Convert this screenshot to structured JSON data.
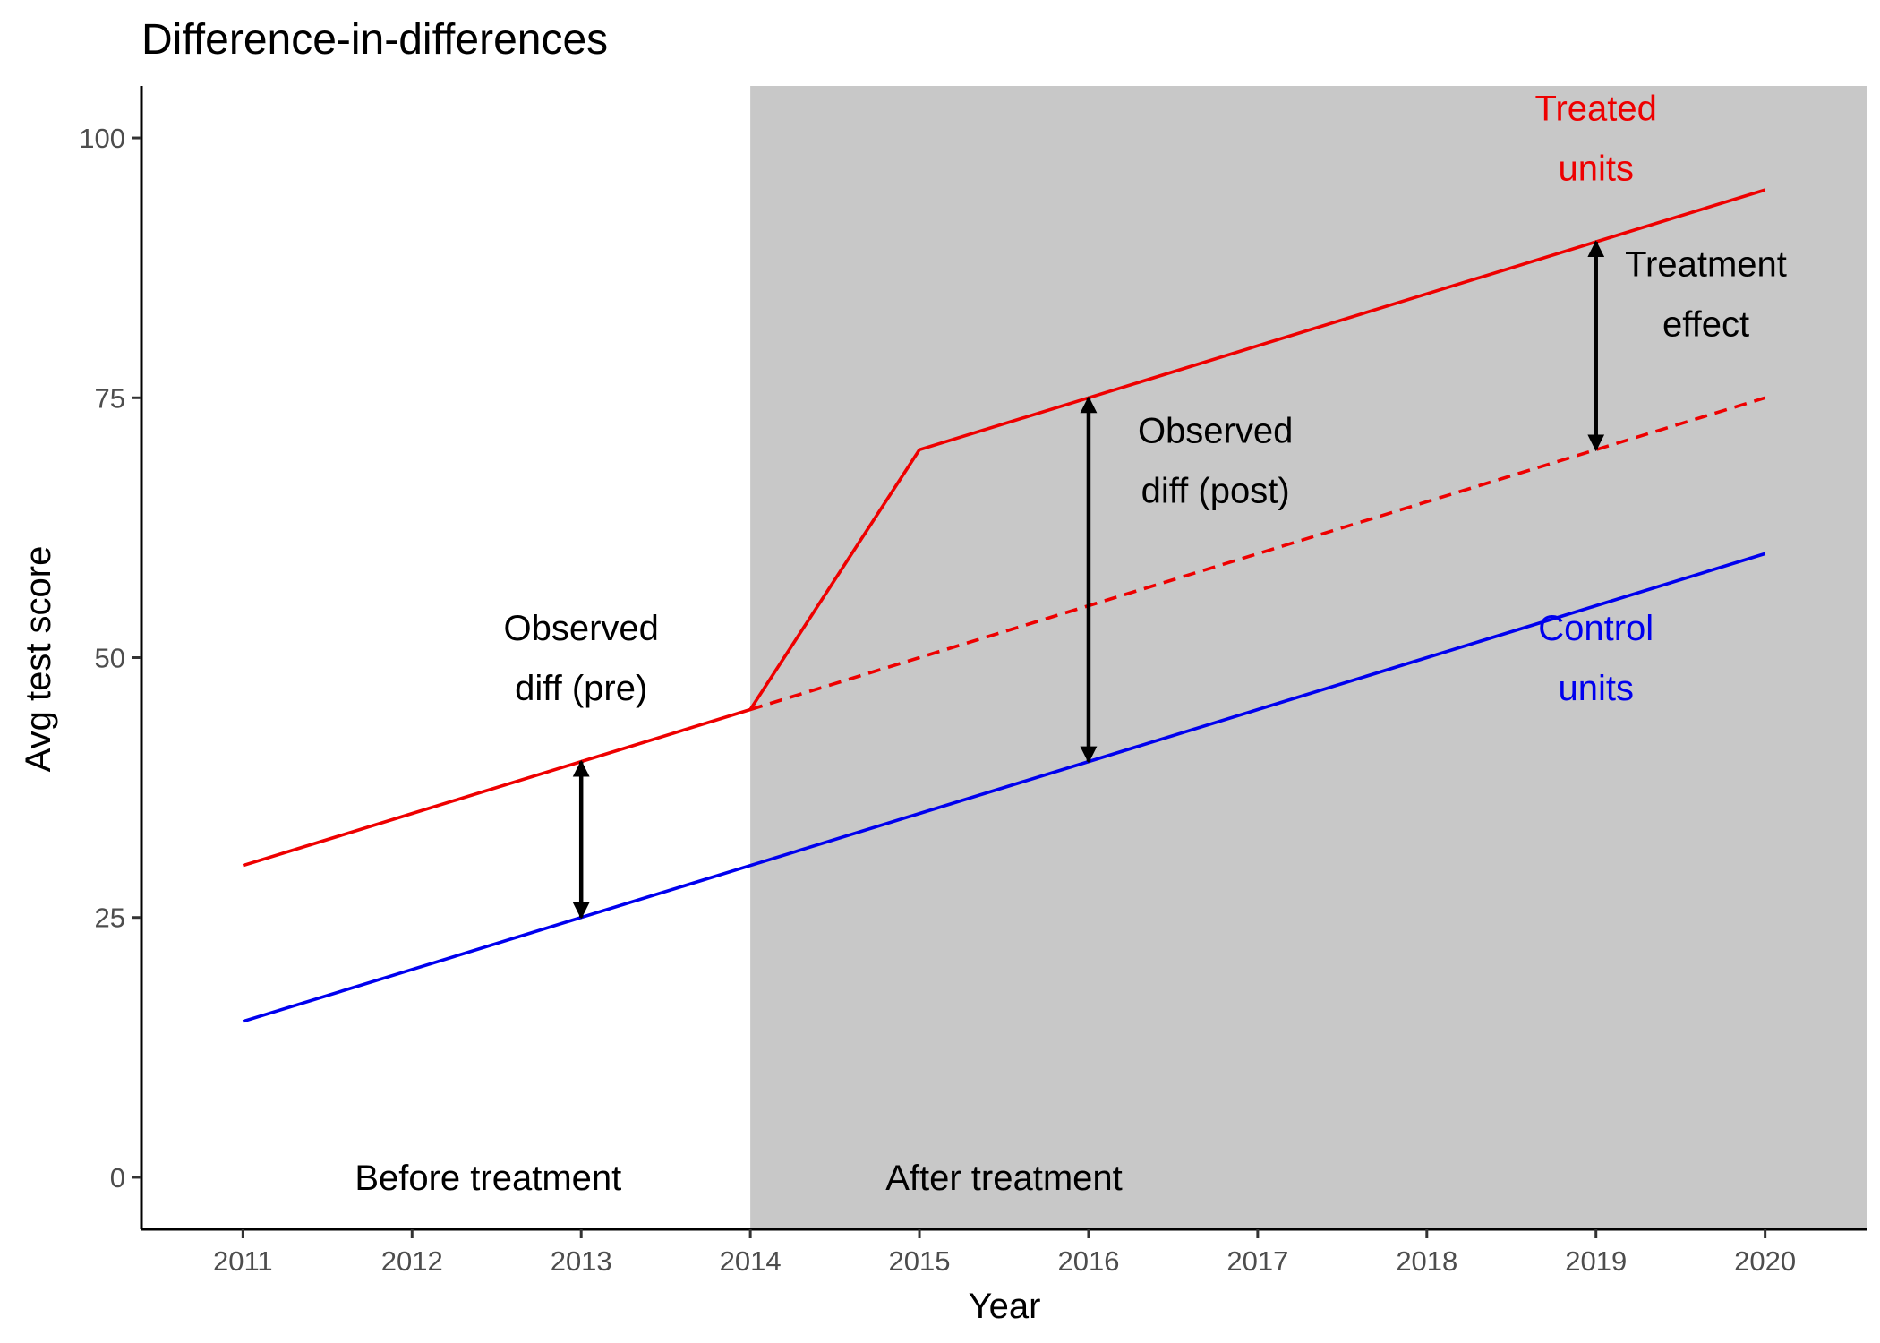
{
  "chart_data": {
    "type": "line",
    "title": "Difference-in-differences",
    "xlabel": "Year",
    "ylabel": "Avg test score",
    "xlim": [
      2010.4,
      2020.6
    ],
    "ylim": [
      -5,
      105
    ],
    "x_ticks": [
      2011,
      2012,
      2013,
      2014,
      2015,
      2016,
      2017,
      2018,
      2019,
      2020
    ],
    "y_ticks": [
      0,
      25,
      50,
      75,
      100
    ],
    "grid": false,
    "legend": "none",
    "shaded_region": {
      "x_from": 2014,
      "x_to": 2020.6,
      "color": "#c8c8c8"
    },
    "series": [
      {
        "name": "Treated units",
        "color": "#ee0000",
        "style": "solid",
        "x": [
          2011,
          2012,
          2013,
          2014,
          2015,
          2016,
          2017,
          2018,
          2019,
          2020
        ],
        "values": [
          30,
          35,
          40,
          45,
          70,
          75,
          80,
          85,
          90,
          95
        ]
      },
      {
        "name": "",
        "color": "#ee0000",
        "style": "dashed",
        "x": [
          2014,
          2015,
          2016,
          2017,
          2018,
          2019,
          2020
        ],
        "values": [
          45,
          50,
          55,
          60,
          65,
          70,
          75
        ]
      },
      {
        "name": "Control units",
        "color": "#0000ee",
        "style": "solid",
        "x": [
          2011,
          2012,
          2013,
          2014,
          2015,
          2016,
          2017,
          2018,
          2019,
          2020
        ],
        "values": [
          15,
          20,
          25,
          30,
          35,
          40,
          45,
          50,
          55,
          60
        ]
      }
    ],
    "arrows": [
      {
        "x": 2013,
        "y_from": 25,
        "y_to": 40
      },
      {
        "x": 2016,
        "y_from": 40,
        "y_to": 75
      },
      {
        "x": 2019,
        "y_from": 70,
        "y_to": 90
      }
    ],
    "annotations": [
      {
        "lines": [
          "Observed",
          "diff (pre)"
        ],
        "x": 2013,
        "y": 50,
        "color": "#000000"
      },
      {
        "lines": [
          "Observed",
          "diff (post)"
        ],
        "x": 2016.75,
        "y": 69,
        "color": "#000000"
      },
      {
        "lines": [
          "Treatment",
          "effect"
        ],
        "x": 2019.65,
        "y": 85,
        "color": "#000000"
      },
      {
        "lines": [
          "Treated",
          "units"
        ],
        "x": 2019,
        "y": 100,
        "color": "#ee0000"
      },
      {
        "lines": [
          "Control",
          "units"
        ],
        "x": 2019,
        "y": 50,
        "color": "#0000ee"
      },
      {
        "lines": [
          "Before treatment"
        ],
        "x": 2012.45,
        "y": 0,
        "color": "#000000"
      },
      {
        "lines": [
          "After treatment"
        ],
        "x": 2015.5,
        "y": 0,
        "color": "#000000"
      }
    ]
  }
}
